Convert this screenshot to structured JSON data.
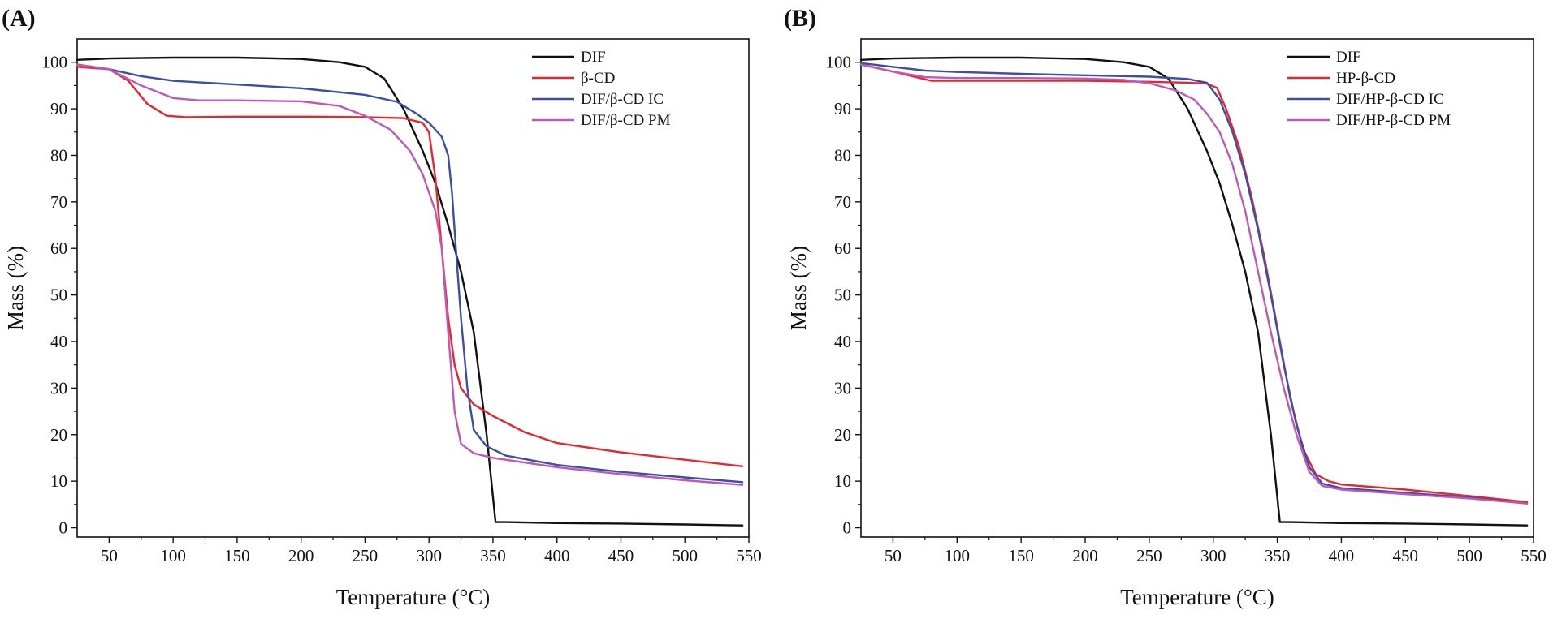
{
  "chart_data": [
    {
      "panel": "(A)",
      "type": "line",
      "xlabel": "Temperature (°C)",
      "ylabel": "Mass (%)",
      "xlim": [
        25,
        550
      ],
      "ylim": [
        -2,
        105
      ],
      "xticks": [
        50,
        100,
        150,
        200,
        250,
        300,
        350,
        400,
        450,
        500,
        550
      ],
      "yticks": [
        0,
        10,
        20,
        30,
        40,
        50,
        60,
        70,
        80,
        90,
        100
      ],
      "legend_position": "top-right",
      "series": [
        {
          "name": "DIF",
          "color": "#111111",
          "x": [
            25,
            50,
            100,
            150,
            200,
            230,
            250,
            265,
            280,
            295,
            305,
            315,
            325,
            335,
            345,
            352,
            360,
            400,
            450,
            500,
            545
          ],
          "y": [
            100.5,
            100.8,
            101,
            101,
            100.7,
            100,
            99,
            96.5,
            90,
            81,
            74,
            65,
            55,
            42,
            20,
            1.2,
            1.2,
            1.0,
            0.9,
            0.7,
            0.5
          ]
        },
        {
          "name": "β-CD",
          "color": "#e8262b",
          "x": [
            25,
            50,
            65,
            80,
            95,
            110,
            150,
            200,
            250,
            280,
            295,
            300,
            305,
            310,
            315,
            320,
            325,
            335,
            350,
            375,
            400,
            450,
            500,
            545
          ],
          "y": [
            99,
            98.5,
            96,
            91,
            88.5,
            88.2,
            88.3,
            88.3,
            88.2,
            88,
            87,
            85,
            75,
            60,
            45,
            35,
            30,
            26.5,
            24,
            20.5,
            18.2,
            16.2,
            14.6,
            13.2
          ]
        },
        {
          "name": "DIF/β-CD IC",
          "color": "#3b4ea8",
          "x": [
            25,
            50,
            75,
            100,
            150,
            200,
            250,
            275,
            290,
            300,
            310,
            315,
            318,
            321,
            325,
            330,
            335,
            345,
            360,
            400,
            450,
            500,
            545
          ],
          "y": [
            99.5,
            98.5,
            97,
            96,
            95.2,
            94.4,
            93,
            91.5,
            89,
            87,
            84,
            80,
            72,
            60,
            45,
            30,
            21,
            17.5,
            15.5,
            13.5,
            12,
            10.8,
            9.8
          ]
        },
        {
          "name": "DIF/β-CD PM",
          "color": "#c158b8",
          "x": [
            25,
            50,
            75,
            100,
            120,
            150,
            200,
            230,
            250,
            270,
            285,
            295,
            305,
            310,
            315,
            320,
            325,
            335,
            350,
            400,
            450,
            500,
            545
          ],
          "y": [
            99.5,
            98.5,
            95,
            92.3,
            91.8,
            91.8,
            91.6,
            90.6,
            88.5,
            85.5,
            81,
            76,
            68,
            60,
            42,
            25,
            18,
            16,
            15,
            13,
            11.5,
            10.2,
            9.2
          ]
        }
      ]
    },
    {
      "panel": "(B)",
      "type": "line",
      "xlabel": "Temperature (°C)",
      "ylabel": "Mass (%)",
      "xlim": [
        25,
        550
      ],
      "ylim": [
        -2,
        105
      ],
      "xticks": [
        50,
        100,
        150,
        200,
        250,
        300,
        350,
        400,
        450,
        500,
        550
      ],
      "yticks": [
        0,
        10,
        20,
        30,
        40,
        50,
        60,
        70,
        80,
        90,
        100
      ],
      "legend_position": "top-right",
      "series": [
        {
          "name": "DIF",
          "color": "#111111",
          "x": [
            25,
            50,
            100,
            150,
            200,
            230,
            250,
            265,
            280,
            295,
            305,
            315,
            325,
            335,
            345,
            352,
            360,
            400,
            450,
            500,
            545
          ],
          "y": [
            100.5,
            100.8,
            101,
            101,
            100.7,
            100,
            99,
            96.5,
            90,
            81,
            74,
            65,
            55,
            42,
            20,
            1.2,
            1.2,
            1.0,
            0.9,
            0.7,
            0.5
          ]
        },
        {
          "name": "HP-β-CD",
          "color": "#e8262b",
          "x": [
            25,
            50,
            65,
            80,
            100,
            150,
            200,
            250,
            280,
            295,
            303,
            310,
            320,
            330,
            340,
            350,
            360,
            370,
            380,
            390,
            400,
            450,
            500,
            545
          ],
          "y": [
            99.5,
            98,
            97,
            96,
            96,
            96,
            96,
            95.8,
            95.6,
            95.4,
            94.5,
            90,
            82,
            71,
            58,
            43,
            28,
            17,
            11.5,
            10,
            9.3,
            8.2,
            6.8,
            5.5
          ]
        },
        {
          "name": "DIF/HP-β-CD IC",
          "color": "#3b4ea8",
          "x": [
            25,
            50,
            75,
            100,
            150,
            200,
            250,
            280,
            295,
            305,
            315,
            325,
            335,
            345,
            355,
            365,
            375,
            385,
            400,
            450,
            500,
            545
          ],
          "y": [
            99.8,
            99,
            98.2,
            97.9,
            97.5,
            97.2,
            96.9,
            96.4,
            95.6,
            92,
            85,
            76,
            64,
            50,
            35,
            22,
            13,
            9.5,
            8.5,
            7.5,
            6.5,
            5.2
          ]
        },
        {
          "name": "DIF/HP-β-CD PM",
          "color": "#c158b8",
          "x": [
            25,
            50,
            75,
            100,
            150,
            200,
            230,
            250,
            270,
            285,
            295,
            305,
            315,
            325,
            335,
            345,
            355,
            365,
            375,
            385,
            400,
            450,
            500,
            545
          ],
          "y": [
            99.5,
            98,
            96.8,
            96.6,
            96.6,
            96.5,
            96.2,
            95.5,
            94,
            92,
            89,
            85,
            78,
            68,
            55,
            42,
            30,
            20,
            12,
            9,
            8.2,
            7.2,
            6.3,
            5.2
          ]
        }
      ]
    }
  ]
}
